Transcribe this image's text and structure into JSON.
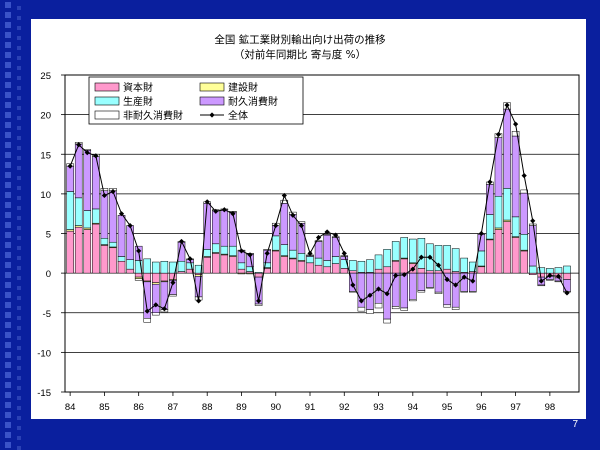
{
  "slide": {
    "page_number": "7",
    "background_color": "#0a1f9e",
    "panel_color": "#ffffff"
  },
  "chart_data": {
    "type": "bar",
    "stacked": true,
    "title": "全国 鉱工業財別輸出向け出荷の推移",
    "subtitle": "（対前年同期比 寄与度 %）",
    "xlabel": "",
    "ylabel": "",
    "ylim": [
      -15,
      25
    ],
    "yticks": [
      -15,
      -10,
      -5,
      0,
      5,
      10,
      15,
      20,
      25
    ],
    "x_tick_labels": [
      "84",
      "85",
      "86",
      "87",
      "88",
      "89",
      "90",
      "91",
      "92",
      "93",
      "94",
      "95",
      "96",
      "97",
      "98"
    ],
    "periods_per_year": 4,
    "start_year": 1984,
    "grid": true,
    "legend_placement": "top-left",
    "series": [
      {
        "name": "資本財",
        "color": "#ff99cc",
        "values": [
          5.3,
          5.8,
          5.5,
          6.2,
          3.5,
          3.2,
          1.5,
          0.5,
          -0.5,
          -1.0,
          -1.2,
          -1.0,
          -0.8,
          0.2,
          0.5,
          -0.2,
          2.0,
          2.5,
          2.3,
          2.1,
          0.5,
          0.2,
          -0.5,
          0.6,
          2.8,
          2.1,
          1.8,
          1.5,
          1.3,
          1.0,
          0.8,
          1.2,
          0.6,
          0.3,
          0.1,
          0.1,
          0.5,
          0.8,
          1.5,
          1.8,
          1.2,
          0.6,
          0.3,
          0.3,
          0.5,
          0.2,
          0.1,
          0.2,
          0.8,
          4.2,
          5.5,
          6.5,
          4.5,
          2.8,
          -0.2,
          -0.5,
          -0.4,
          -0.6,
          -0.8
        ]
      },
      {
        "name": "建設財",
        "color": "#ffff99",
        "values": [
          0.2,
          0.2,
          0.2,
          0.1,
          0.1,
          0.1,
          0.0,
          0.0,
          -0.2,
          -0.1,
          -0.2,
          -0.1,
          -0.1,
          0.0,
          0.0,
          -0.2,
          0.1,
          0.1,
          0.1,
          0.1,
          -0.1,
          -0.1,
          0.0,
          0.1,
          0.1,
          0.1,
          0.1,
          0.1,
          0.0,
          0.0,
          0.0,
          0.0,
          0.0,
          0.0,
          0.0,
          0.0,
          0.0,
          0.0,
          0.1,
          0.1,
          0.1,
          0.0,
          0.0,
          0.0,
          0.0,
          0.0,
          0.0,
          0.0,
          0.1,
          0.1,
          0.2,
          0.2,
          0.1,
          0.1,
          0.0,
          0.0,
          0.0,
          0.0,
          0.0
        ]
      },
      {
        "name": "生産財",
        "color": "#99ffff",
        "values": [
          4.8,
          3.5,
          2.2,
          1.8,
          0.8,
          0.6,
          0.6,
          1.2,
          1.6,
          1.8,
          1.4,
          1.5,
          1.4,
          1.3,
          0.8,
          1.0,
          0.9,
          1.1,
          1.0,
          1.2,
          0.8,
          0.6,
          0.1,
          0.6,
          1.8,
          1.4,
          1.0,
          0.9,
          0.8,
          0.9,
          0.8,
          0.9,
          1.1,
          1.3,
          1.4,
          1.6,
          1.8,
          2.2,
          2.4,
          2.6,
          3.0,
          3.8,
          3.4,
          3.2,
          3.0,
          2.9,
          1.8,
          1.2,
          1.9,
          3.1,
          4.0,
          4.0,
          2.5,
          2.0,
          0.9,
          0.7,
          0.6,
          0.7,
          0.9
        ]
      },
      {
        "name": "耐久消費財",
        "color": "#cc99ff",
        "values": [
          3.2,
          6.8,
          7.6,
          6.6,
          6.0,
          6.5,
          5.2,
          4.3,
          1.8,
          -4.6,
          -3.6,
          -3.5,
          -1.8,
          2.4,
          0.4,
          -2.6,
          5.8,
          4.2,
          4.6,
          4.3,
          1.5,
          1.6,
          -3.4,
          1.6,
          1.3,
          5.2,
          4.5,
          3.8,
          0.1,
          2.1,
          3.2,
          2.4,
          0.4,
          -2.3,
          -4.3,
          -4.6,
          -3.8,
          -5.8,
          -4.2,
          -4.4,
          -3.3,
          -2.2,
          -1.8,
          -2.4,
          -4.0,
          -4.3,
          -2.3,
          -2.3,
          2.1,
          3.8,
          7.4,
          10.0,
          10.2,
          5.2,
          5.1,
          -1.0,
          -0.4,
          -0.4,
          -1.5
        ]
      },
      {
        "name": "非耐久消費財",
        "color": "#ffffff",
        "values": [
          0.3,
          0.2,
          0.1,
          0.3,
          0.3,
          0.3,
          0.0,
          0.0,
          -0.2,
          -0.5,
          -0.3,
          -0.3,
          -0.2,
          0.1,
          0.1,
          -0.4,
          0.2,
          0.1,
          0.1,
          0.1,
          0.1,
          0.1,
          -0.2,
          0.1,
          0.3,
          0.4,
          0.3,
          0.2,
          0.1,
          0.1,
          0.1,
          0.1,
          0.1,
          -0.1,
          -0.5,
          -0.5,
          -0.6,
          -0.5,
          -0.3,
          -0.3,
          -0.2,
          -0.2,
          -0.1,
          -0.2,
          -0.3,
          -0.3,
          -0.1,
          -0.1,
          0.1,
          0.3,
          0.5,
          0.8,
          0.6,
          0.4,
          0.2,
          -0.1,
          -0.1,
          -0.1,
          -0.1
        ]
      }
    ],
    "total": {
      "name": "全体",
      "color": "#000000",
      "values": [
        13.5,
        16.2,
        15.2,
        14.8,
        9.8,
        10.3,
        7.5,
        6.0,
        2.8,
        -4.8,
        -4.0,
        -4.5,
        -1.2,
        4.0,
        1.8,
        -3.5,
        9.0,
        7.8,
        8.0,
        7.5,
        2.8,
        2.3,
        -3.5,
        2.5,
        6.0,
        9.8,
        7.3,
        6.0,
        2.5,
        4.5,
        5.2,
        4.8,
        2.5,
        -1.5,
        -3.5,
        -2.8,
        -2.0,
        -2.6,
        -0.3,
        -0.2,
        0.5,
        2.0,
        2.0,
        1.0,
        -0.8,
        -1.5,
        -0.5,
        -1.0,
        5.0,
        11.5,
        17.5,
        21.2,
        18.8,
        12.3,
        6.6,
        -1.0,
        -0.3,
        -0.4,
        -2.5
      ]
    }
  }
}
